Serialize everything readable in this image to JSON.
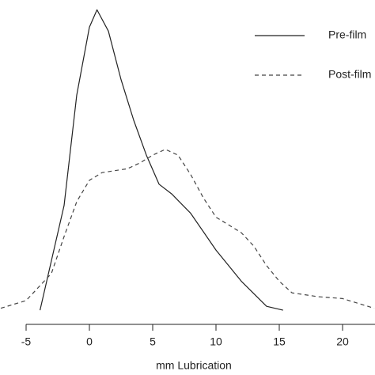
{
  "chart_data": {
    "type": "line",
    "x_label": "mm Lubrication",
    "xlim": [
      -7,
      22.5
    ],
    "xticks": [
      -5,
      0,
      5,
      10,
      15,
      20
    ],
    "ylim": [
      0,
      0.16
    ],
    "series": [
      {
        "name": "Pre-film",
        "color": "#222222",
        "dash": "solid",
        "x": [
          -3.9,
          -2,
          -1,
          0,
          0.6,
          1.5,
          2.5,
          3.5,
          4.5,
          5.5,
          6.5,
          8,
          10,
          12,
          14,
          15.3
        ],
        "values": [
          0.002,
          0.056,
          0.113,
          0.148,
          0.157,
          0.146,
          0.121,
          0.1,
          0.082,
          0.067,
          0.062,
          0.052,
          0.033,
          0.017,
          0.004,
          0.002
        ]
      },
      {
        "name": "Post-film",
        "color": "#444444",
        "dash": "dashed",
        "x": [
          -7,
          -5,
          -3,
          -2,
          -1,
          0,
          1,
          2,
          3,
          4,
          5,
          6,
          7,
          8,
          9,
          10,
          11,
          12,
          13,
          14,
          15,
          16,
          18,
          20,
          22.5
        ],
        "values": [
          0.003,
          0.007,
          0.021,
          0.04,
          0.058,
          0.069,
          0.073,
          0.074,
          0.075,
          0.078,
          0.082,
          0.085,
          0.082,
          0.072,
          0.06,
          0.05,
          0.046,
          0.042,
          0.035,
          0.025,
          0.017,
          0.011,
          0.009,
          0.008,
          0.003
        ]
      }
    ]
  }
}
